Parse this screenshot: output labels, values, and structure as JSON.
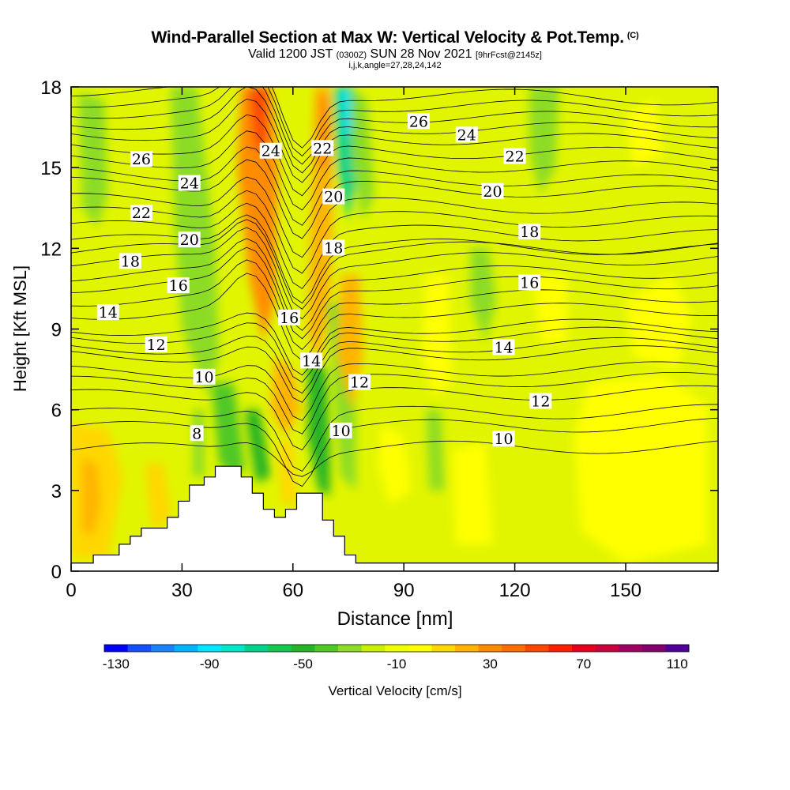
{
  "title": "Wind-Parallel Section at Max W: Vertical Velocity & Pot.Temp.",
  "title_mark": "(C)",
  "subtitle_main_a": "Valid 1200 JST",
  "subtitle_small_a": "(0300Z)",
  "subtitle_main_b": "SUN 28 Nov 2021",
  "subtitle_small_b": "[9hrFcst@2145z]",
  "subsubtitle": "i,j,k,angle=27,28,24,142",
  "chart_data": {
    "type": "heatmap",
    "title": "Wind-Parallel Section at Max W: Vertical Velocity & Pot.Temp.",
    "xlabel": "Distance [nm]",
    "ylabel": "Height [Kft MSL]",
    "xlim": [
      0,
      175
    ],
    "ylim": [
      0,
      18
    ],
    "xticks": [
      0,
      30,
      60,
      90,
      120,
      150
    ],
    "yticks": [
      0,
      3,
      6,
      9,
      12,
      15,
      18
    ],
    "colorbar": {
      "label": "Vertical Velocity [cm/s]",
      "tick_labels": [
        -130,
        -90,
        -50,
        -10,
        30,
        70,
        110
      ],
      "colors": [
        "#0000ff",
        "#1450ff",
        "#1e82ff",
        "#00b4ff",
        "#00e6ff",
        "#00e6c8",
        "#00d28c",
        "#14c850",
        "#28b428",
        "#50c828",
        "#8cdc28",
        "#c8f000",
        "#f0ff00",
        "#ffff00",
        "#ffd700",
        "#ffb400",
        "#ff8c00",
        "#ff6e00",
        "#ff4600",
        "#ff1e00",
        "#e6001e",
        "#c8003c",
        "#a00064",
        "#82006e",
        "#500096"
      ]
    },
    "theta_labels": [
      {
        "x": 19,
        "y": 15.3,
        "text": "26"
      },
      {
        "x": 32,
        "y": 14.4,
        "text": "24"
      },
      {
        "x": 19,
        "y": 13.3,
        "text": "22"
      },
      {
        "x": 32,
        "y": 12.3,
        "text": "20"
      },
      {
        "x": 16,
        "y": 11.5,
        "text": "18"
      },
      {
        "x": 29,
        "y": 10.6,
        "text": "16"
      },
      {
        "x": 10,
        "y": 9.6,
        "text": "14"
      },
      {
        "x": 23,
        "y": 8.4,
        "text": "12"
      },
      {
        "x": 36,
        "y": 7.2,
        "text": "10"
      },
      {
        "x": 34,
        "y": 5.1,
        "text": "8"
      },
      {
        "x": 54,
        "y": 15.6,
        "text": "24"
      },
      {
        "x": 68,
        "y": 15.7,
        "text": "22"
      },
      {
        "x": 71,
        "y": 13.9,
        "text": "20"
      },
      {
        "x": 71,
        "y": 12.0,
        "text": "18"
      },
      {
        "x": 59,
        "y": 9.4,
        "text": "16"
      },
      {
        "x": 65,
        "y": 7.8,
        "text": "14"
      },
      {
        "x": 78,
        "y": 7.0,
        "text": "12"
      },
      {
        "x": 73,
        "y": 5.2,
        "text": "10"
      },
      {
        "x": 94,
        "y": 16.7,
        "text": "26"
      },
      {
        "x": 107,
        "y": 16.2,
        "text": "24"
      },
      {
        "x": 120,
        "y": 15.4,
        "text": "22"
      },
      {
        "x": 114,
        "y": 14.1,
        "text": "20"
      },
      {
        "x": 124,
        "y": 12.6,
        "text": "18"
      },
      {
        "x": 124,
        "y": 10.7,
        "text": "16"
      },
      {
        "x": 117,
        "y": 8.3,
        "text": "14"
      },
      {
        "x": 127,
        "y": 6.3,
        "text": "12"
      },
      {
        "x": 117,
        "y": 4.9,
        "text": "10"
      }
    ]
  }
}
